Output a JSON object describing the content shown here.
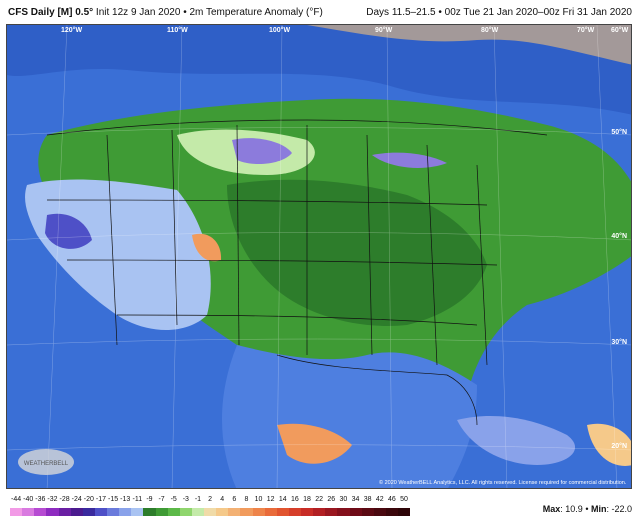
{
  "header": {
    "model": "CFS Daily [M] 0.5°",
    "init": "Init 12z 9 Jan 2020",
    "field": "2m Temperature Anomaly (°F)",
    "valid": "Days 11.5–21.5 • 00z Tue 21 Jan 2020–00z Fri 31 Jan 2020"
  },
  "longitudes": [
    "120°W",
    "110°W",
    "100°W",
    "90°W",
    "80°W",
    "70°W",
    "60°W"
  ],
  "latitudes": [
    "50°N",
    "40°N",
    "30°N",
    "20°N"
  ],
  "copyright": "© 2020 WeatherBELL Analytics, LLC. All rights reserved. License required for commercial distribution.",
  "logo_text": "WEATHERBELL",
  "scale": {
    "ticks": [
      "-44",
      "-40",
      "-36",
      "-32",
      "-28",
      "-24",
      "-20",
      "-17",
      "-15",
      "-13",
      "-11",
      "-9",
      "-7",
      "-5",
      "-3",
      "-1",
      "2",
      "4",
      "6",
      "8",
      "10",
      "12",
      "14",
      "16",
      "18",
      "22",
      "26",
      "30",
      "34",
      "38",
      "42",
      "46",
      "50"
    ],
    "colors": [
      "#f29ae6",
      "#d97ae0",
      "#b64bd2",
      "#8e2bc0",
      "#6a1fa3",
      "#4b1b8f",
      "#3a2a9e",
      "#4e50c7",
      "#6a7bdc",
      "#89a2ea",
      "#a9c3f2",
      "#2d7d2b",
      "#3f9b35",
      "#5cb948",
      "#8fd56d",
      "#c4eaa9",
      "#f0dba8",
      "#f5c98a",
      "#f3b174",
      "#f19b5d",
      "#ee844a",
      "#e96b3a",
      "#e1542f",
      "#d63e2a",
      "#c82c26",
      "#b21f23",
      "#9a1720",
      "#84101c",
      "#6e0b17",
      "#5b0a13",
      "#4a0910",
      "#3b070c",
      "#2e0508"
    ],
    "max_label": "Max",
    "max_value": "10.9",
    "min_label": "Min",
    "min_value": "-22.0"
  }
}
